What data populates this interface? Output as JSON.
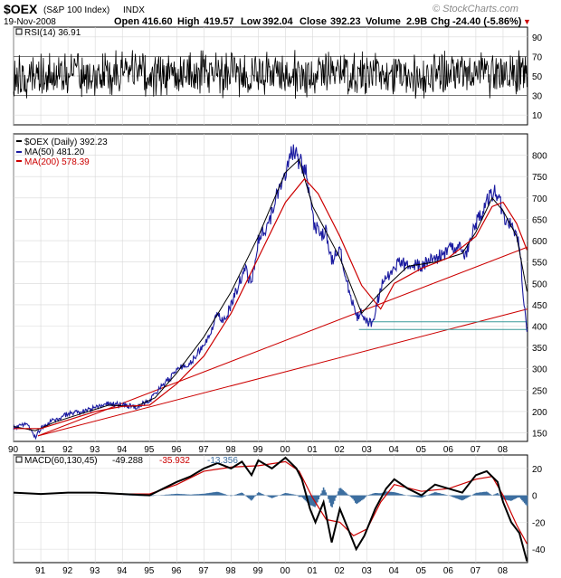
{
  "header": {
    "symbol": "$OEX",
    "name": "(S&P 100 Index)",
    "exchange": "INDX",
    "date": "19-Nov-2008",
    "open_label": "Open",
    "open": "416.60",
    "high_label": "High",
    "high": "419.57",
    "low_label": "Low",
    "low": "392.04",
    "close_label": "Close",
    "close": "392.23",
    "volume_label": "Volume",
    "volume": "2.9B",
    "chg_label": "Chg",
    "chg": "-24.40 (-5.86%)",
    "chg_arrow": "▼",
    "watermark": "© StockCharts.com"
  },
  "colors": {
    "price": "#1a1aa0",
    "ma200": "#cc0000",
    "macd_line": "#000000",
    "macd_signal": "#cc0000",
    "histogram": "#3c6ea0",
    "support": "#3a9a9a",
    "grid": "#d8d8d8"
  },
  "chart_data": [
    {
      "type": "line",
      "panel": "RSI",
      "legend": "RSI(14) 36.91",
      "ylim": [
        0,
        100
      ],
      "yticks": [
        10,
        30,
        50,
        70,
        90
      ],
      "reference_lines": [
        30,
        70
      ]
    },
    {
      "type": "line",
      "panel": "Price",
      "title": "$OEX (S&P 100 Index) INDX",
      "ylim": [
        130,
        850
      ],
      "yticks": [
        150,
        200,
        250,
        300,
        350,
        400,
        450,
        500,
        550,
        600,
        650,
        700,
        750,
        800
      ],
      "xticks": [
        "90",
        "91",
        "92",
        "93",
        "94",
        "95",
        "96",
        "97",
        "98",
        "99",
        "00",
        "01",
        "02",
        "03",
        "04",
        "05",
        "06",
        "07",
        "08"
      ],
      "x_year_range": [
        1990.0,
        2008.9
      ],
      "series": [
        {
          "name": "$OEX (Daily)",
          "legend": "$OEX (Daily) 392.23",
          "x": [
            1990.0,
            1990.5,
            1990.8,
            1991.0,
            1991.3,
            1991.6,
            1992.0,
            1992.5,
            1993.0,
            1993.5,
            1994.0,
            1994.5,
            1995.0,
            1995.5,
            1996.0,
            1996.5,
            1997.0,
            1997.5,
            1997.8,
            1998.0,
            1998.5,
            1998.75,
            1999.0,
            1999.5,
            1999.8,
            2000.0,
            2000.2,
            2000.5,
            2000.75,
            2001.0,
            2001.25,
            2001.5,
            2001.7,
            2002.0,
            2002.3,
            2002.6,
            2002.8,
            2003.0,
            2003.2,
            2003.5,
            2004.0,
            2004.5,
            2005.0,
            2005.5,
            2006.0,
            2006.4,
            2006.6,
            2007.0,
            2007.4,
            2007.6,
            2007.8,
            2008.0,
            2008.3,
            2008.6,
            2008.75,
            2008.88
          ],
          "values": [
            162,
            172,
            140,
            160,
            175,
            182,
            195,
            198,
            210,
            218,
            215,
            210,
            225,
            262,
            295,
            315,
            355,
            430,
            410,
            455,
            535,
            495,
            600,
            660,
            730,
            760,
            810,
            790,
            760,
            650,
            610,
            620,
            550,
            580,
            490,
            420,
            430,
            410,
            405,
            490,
            545,
            545,
            540,
            560,
            575,
            590,
            560,
            640,
            690,
            710,
            715,
            660,
            640,
            600,
            470,
            392
          ]
        },
        {
          "name": "MA(50)",
          "legend": "MA(50) 481.20",
          "x": [
            1990.0,
            1990.8,
            1991.5,
            1992.5,
            1993.5,
            1994.5,
            1995.2,
            1996.0,
            1997.0,
            1998.0,
            1999.0,
            2000.0,
            2000.5,
            2001.0,
            2002.0,
            2002.8,
            2003.5,
            2004.5,
            2005.5,
            2006.5,
            2007.0,
            2007.6,
            2008.0,
            2008.5,
            2008.88
          ],
          "values": [
            165,
            155,
            175,
            195,
            215,
            212,
            232,
            290,
            375,
            480,
            610,
            760,
            790,
            680,
            560,
            430,
            480,
            540,
            550,
            570,
            620,
            700,
            670,
            610,
            481
          ]
        },
        {
          "name": "MA(200)",
          "legend": "MA(200) 578.39",
          "x": [
            1990.0,
            1991.0,
            1992.0,
            1993.0,
            1994.0,
            1995.0,
            1996.0,
            1997.0,
            1998.0,
            1999.0,
            2000.0,
            2000.7,
            2001.2,
            2002.0,
            2002.8,
            2003.5,
            2004.0,
            2005.0,
            2006.0,
            2007.0,
            2007.6,
            2008.0,
            2008.5,
            2008.88
          ],
          "values": [
            160,
            160,
            180,
            200,
            212,
            215,
            265,
            330,
            430,
            560,
            690,
            745,
            710,
            610,
            495,
            440,
            500,
            535,
            560,
            610,
            680,
            690,
            640,
            578
          ]
        },
        {
          "name": "Trendline (91-95 to 08)",
          "x": [
            1990.9,
            2008.9
          ],
          "values": [
            143,
            585
          ]
        },
        {
          "name": "Trendline (91 to 08)",
          "x": [
            1990.9,
            2008.9
          ],
          "values": [
            143,
            440
          ]
        },
        {
          "name": "Support 410",
          "x": [
            2003.0,
            2008.9
          ],
          "values": [
            410,
            410
          ]
        },
        {
          "name": "Support 392",
          "x": [
            2002.7,
            2008.9
          ],
          "values": [
            392,
            392
          ]
        }
      ]
    },
    {
      "type": "line",
      "panel": "MACD",
      "legend_prefix": "MACD(60,130,45)",
      "legend_macd": "-49.288",
      "legend_signal": "-35.932",
      "legend_hist": "-13.356",
      "ylim": [
        -50,
        30
      ],
      "yticks": [
        20,
        0,
        -20,
        -40
      ],
      "series": [
        {
          "name": "MACD",
          "x": [
            1990.0,
            1991.0,
            1992.0,
            1993.0,
            1994.0,
            1995.0,
            1995.5,
            1996.0,
            1996.5,
            1997.0,
            1997.5,
            1998.0,
            1998.4,
            1998.75,
            1999.0,
            1999.5,
            2000.0,
            2000.4,
            2000.6,
            2000.9,
            2001.1,
            2001.4,
            2001.7,
            2002.0,
            2002.3,
            2002.6,
            2002.9,
            2003.3,
            2003.7,
            2004.0,
            2004.5,
            2005.0,
            2005.5,
            2006.0,
            2006.5,
            2007.0,
            2007.4,
            2007.8,
            2008.0,
            2008.3,
            2008.6,
            2008.88
          ],
          "values": [
            2,
            1,
            2,
            2,
            1,
            0,
            5,
            10,
            14,
            20,
            24,
            20,
            25,
            15,
            26,
            20,
            28,
            20,
            12,
            -10,
            -20,
            -5,
            -35,
            -10,
            -25,
            -40,
            -30,
            -10,
            5,
            12,
            5,
            0,
            8,
            5,
            2,
            15,
            18,
            10,
            -5,
            -20,
            -28,
            -49
          ]
        },
        {
          "name": "Signal",
          "x": [
            1990.0,
            1991.0,
            1992.0,
            1993.0,
            1994.0,
            1995.0,
            1996.0,
            1997.0,
            1998.0,
            1999.0,
            2000.0,
            2000.5,
            2001.0,
            2001.5,
            2002.0,
            2002.5,
            2003.0,
            2003.5,
            2004.0,
            2005.0,
            2006.0,
            2007.0,
            2007.6,
            2008.0,
            2008.5,
            2008.88
          ],
          "values": [
            2,
            1,
            2,
            2,
            1,
            1,
            8,
            18,
            21,
            22,
            25,
            18,
            -2,
            -18,
            -20,
            -30,
            -25,
            -5,
            8,
            3,
            5,
            12,
            14,
            0,
            -22,
            -36
          ]
        }
      ]
    }
  ]
}
